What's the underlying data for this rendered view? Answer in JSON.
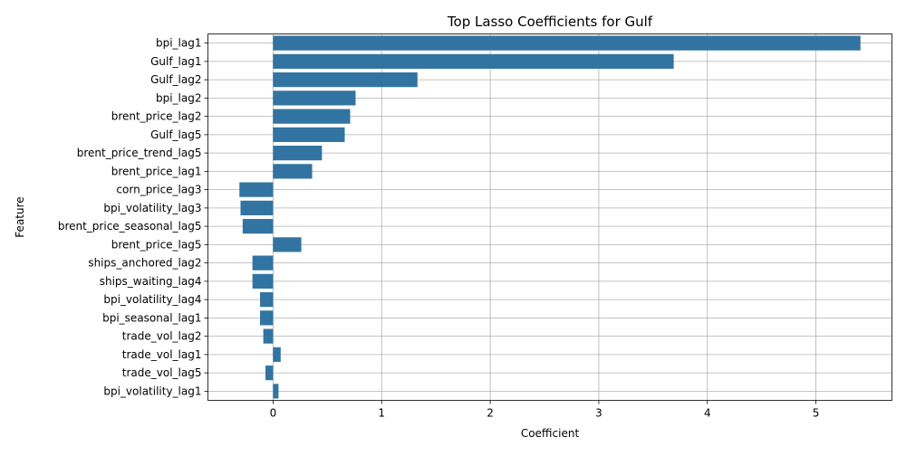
{
  "chart_data": {
    "type": "bar",
    "orientation": "horizontal",
    "title": "Top Lasso Coefficients for Gulf",
    "xlabel": "Coefficient",
    "ylabel": "Feature",
    "categories": [
      "bpi_lag1",
      "Gulf_lag1",
      "Gulf_lag2",
      "bpi_lag2",
      "brent_price_lag2",
      "Gulf_lag5",
      "brent_price_trend_lag5",
      "brent_price_lag1",
      "corn_price_lag3",
      "bpi_volatility_lag3",
      "brent_price_seasonal_lag5",
      "brent_price_lag5",
      "ships_anchored_lag2",
      "ships_waiting_lag4",
      "bpi_volatility_lag4",
      "bpi_seasonal_lag1",
      "trade_vol_lag2",
      "trade_vol_lag1",
      "trade_vol_lag5",
      "bpi_volatility_lag1"
    ],
    "values": [
      5.41,
      3.69,
      1.33,
      0.76,
      0.71,
      0.66,
      0.45,
      0.36,
      -0.31,
      -0.3,
      -0.28,
      0.26,
      -0.19,
      -0.19,
      -0.12,
      -0.12,
      -0.09,
      0.07,
      -0.07,
      0.05
    ],
    "xlim": [
      -0.6,
      5.7
    ],
    "xticks": [
      0,
      1,
      2,
      3,
      4,
      5
    ],
    "grid": true,
    "legend": "none",
    "bar_color": "#3274a1"
  }
}
